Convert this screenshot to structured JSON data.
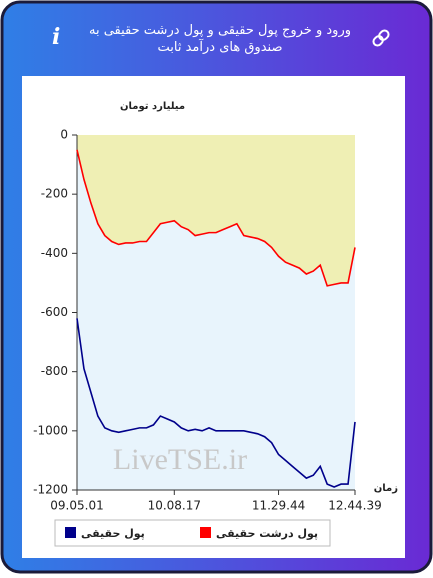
{
  "header": {
    "title": "ورود و خروج پول حقیقی و پول درشت حقیقی به صندوق های درآمد ثابت"
  },
  "chart_data": {
    "type": "line",
    "ylabel": "میلیارد تومان",
    "xlabel": "زمان",
    "watermark": "LiveTSE.ir",
    "categories": [
      "09.05.01",
      null,
      null,
      null,
      null,
      null,
      null,
      null,
      null,
      null,
      null,
      null,
      null,
      null,
      "10.08.17",
      null,
      null,
      null,
      null,
      null,
      null,
      null,
      null,
      null,
      null,
      null,
      null,
      null,
      null,
      "11.29.44",
      null,
      null,
      null,
      null,
      null,
      null,
      null,
      null,
      null,
      null,
      "12.44.39"
    ],
    "ylim": [
      -1200,
      0
    ],
    "yticks": [
      0,
      -200,
      -400,
      -600,
      -800,
      -1000,
      -1200
    ],
    "series": [
      {
        "name": "پول درشت حقیقی",
        "color": "#ff0000",
        "values": [
          -50,
          -150,
          -230,
          -300,
          -340,
          -360,
          -370,
          -365,
          -365,
          -360,
          -360,
          -330,
          -300,
          -295,
          -290,
          -310,
          -320,
          -340,
          -335,
          -330,
          -330,
          -320,
          -310,
          -300,
          -340,
          -345,
          -350,
          -360,
          -380,
          -410,
          -430,
          -440,
          -450,
          -470,
          -460,
          -440,
          -510,
          -505,
          -500,
          -500,
          -380
        ]
      },
      {
        "name": "پول حقیقی",
        "color": "#00008b",
        "values": [
          -620,
          -790,
          -870,
          -950,
          -990,
          -1000,
          -1005,
          -1000,
          -995,
          -990,
          -990,
          -980,
          -950,
          -960,
          -970,
          -990,
          -1000,
          -995,
          -1000,
          -990,
          -1000,
          -1000,
          -1000,
          -1000,
          -1000,
          -1005,
          -1010,
          -1020,
          -1040,
          -1080,
          -1100,
          -1120,
          -1140,
          -1160,
          -1150,
          -1120,
          -1180,
          -1190,
          -1180,
          -1180,
          -970
        ]
      }
    ],
    "fill_above": "#efefb4",
    "fill_below": "#e8f4fc"
  }
}
